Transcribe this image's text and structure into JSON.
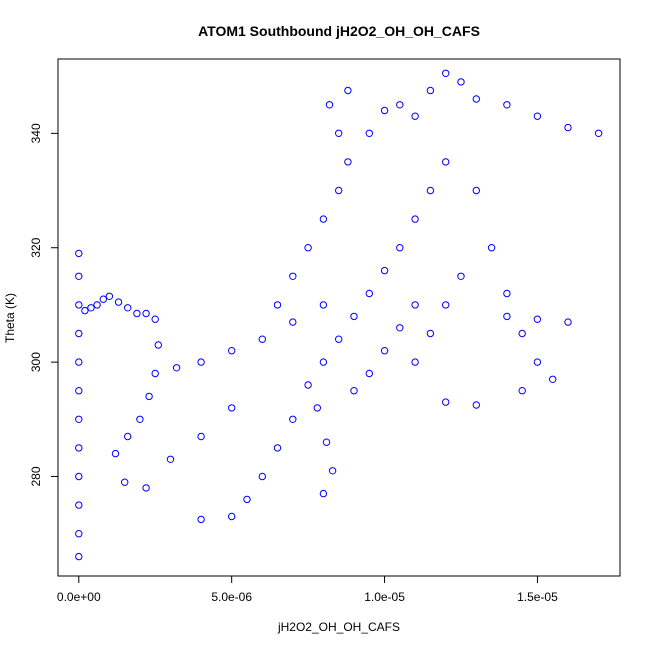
{
  "chart_data": {
    "type": "scatter",
    "title": "ATOM1 Southbound jH2O2_OH_OH_CAFS",
    "xlabel": "jH2O2_OH_OH_CAFS",
    "ylabel": "Theta (K)",
    "xlim": [
      -6.8e-07,
      1.77e-05
    ],
    "ylim": [
      262.6,
      353.0
    ],
    "x_ticks": [
      {
        "value": 0,
        "label": "0.0e+00"
      },
      {
        "value": 5e-06,
        "label": "5.0e-06"
      },
      {
        "value": 1e-05,
        "label": "1.0e-05"
      },
      {
        "value": 1.5e-05,
        "label": "1.5e-05"
      }
    ],
    "y_ticks": [
      {
        "value": 280,
        "label": "280"
      },
      {
        "value": 300,
        "label": "300"
      },
      {
        "value": 320,
        "label": "320"
      },
      {
        "value": 340,
        "label": "340"
      }
    ],
    "grid": false,
    "marker": "open-circle",
    "series": [
      {
        "color": "#0000ff",
        "points": [
          [
            0,
            266
          ],
          [
            0,
            270
          ],
          [
            0,
            275
          ],
          [
            0,
            280
          ],
          [
            0,
            285
          ],
          [
            0,
            290
          ],
          [
            0,
            295
          ],
          [
            0,
            300
          ],
          [
            0,
            305
          ],
          [
            0,
            310
          ],
          [
            0,
            315
          ],
          [
            0,
            319
          ],
          [
            2e-07,
            309
          ],
          [
            4e-07,
            309.5
          ],
          [
            6e-07,
            310
          ],
          [
            8e-07,
            311
          ],
          [
            1e-06,
            311.5
          ],
          [
            1.3e-06,
            310.5
          ],
          [
            1.6e-06,
            309.5
          ],
          [
            1.9e-06,
            308.5
          ],
          [
            2.2e-06,
            308.5
          ],
          [
            2.5e-06,
            307.5
          ],
          [
            2.6e-06,
            303
          ],
          [
            2.5e-06,
            298
          ],
          [
            2.3e-06,
            294
          ],
          [
            2e-06,
            290
          ],
          [
            1.6e-06,
            287
          ],
          [
            1.2e-06,
            284
          ],
          [
            1.5e-06,
            279
          ],
          [
            2.2e-06,
            278
          ],
          [
            3e-06,
            283
          ],
          [
            4e-06,
            287
          ],
          [
            5e-06,
            292
          ],
          [
            3.2e-06,
            299
          ],
          [
            4e-06,
            300
          ],
          [
            5e-06,
            302
          ],
          [
            6e-06,
            304
          ],
          [
            7e-06,
            307
          ],
          [
            8e-06,
            310
          ],
          [
            4e-06,
            272.5
          ],
          [
            5e-06,
            273
          ],
          [
            5.5e-06,
            276
          ],
          [
            6e-06,
            280
          ],
          [
            6.5e-06,
            285
          ],
          [
            7e-06,
            290
          ],
          [
            7.5e-06,
            296
          ],
          [
            8e-06,
            300
          ],
          [
            8.5e-06,
            304
          ],
          [
            9e-06,
            308
          ],
          [
            9.5e-06,
            312
          ],
          [
            1e-05,
            316
          ],
          [
            1.05e-05,
            320
          ],
          [
            1.1e-05,
            325
          ],
          [
            1.15e-05,
            330
          ],
          [
            1.2e-05,
            335
          ],
          [
            8e-06,
            277
          ],
          [
            8.3e-06,
            281
          ],
          [
            8.1e-06,
            286
          ],
          [
            7.8e-06,
            292
          ],
          [
            6.5e-06,
            310
          ],
          [
            7e-06,
            315
          ],
          [
            7.5e-06,
            320
          ],
          [
            8e-06,
            325
          ],
          [
            8.5e-06,
            330
          ],
          [
            8.8e-06,
            335
          ],
          [
            8.5e-06,
            340
          ],
          [
            8.2e-06,
            345
          ],
          [
            8.8e-06,
            347.5
          ],
          [
            9.5e-06,
            340
          ],
          [
            1e-05,
            344
          ],
          [
            1.05e-05,
            345
          ],
          [
            1.1e-05,
            343
          ],
          [
            1.15e-05,
            347.5
          ],
          [
            1.2e-05,
            350.5
          ],
          [
            1.25e-05,
            349
          ],
          [
            1.3e-05,
            346
          ],
          [
            1.4e-05,
            345
          ],
          [
            1.5e-05,
            343
          ],
          [
            1.6e-05,
            341
          ],
          [
            1.7e-05,
            340
          ],
          [
            1.3e-05,
            330
          ],
          [
            1.35e-05,
            320
          ],
          [
            1.4e-05,
            312
          ],
          [
            1.45e-05,
            305
          ],
          [
            1.5e-05,
            300
          ],
          [
            1.55e-05,
            297
          ],
          [
            1.45e-05,
            295
          ],
          [
            1.3e-05,
            292.5
          ],
          [
            1.2e-05,
            293
          ],
          [
            1.1e-05,
            300
          ],
          [
            1.15e-05,
            305
          ],
          [
            1.2e-05,
            310
          ],
          [
            1.25e-05,
            315
          ],
          [
            9e-06,
            295
          ],
          [
            9.5e-06,
            298
          ],
          [
            1e-05,
            302
          ],
          [
            1.05e-05,
            306
          ],
          [
            1.1e-05,
            310
          ],
          [
            1.6e-05,
            307
          ],
          [
            1.5e-05,
            307.5
          ],
          [
            1.4e-05,
            308
          ]
        ]
      }
    ]
  }
}
